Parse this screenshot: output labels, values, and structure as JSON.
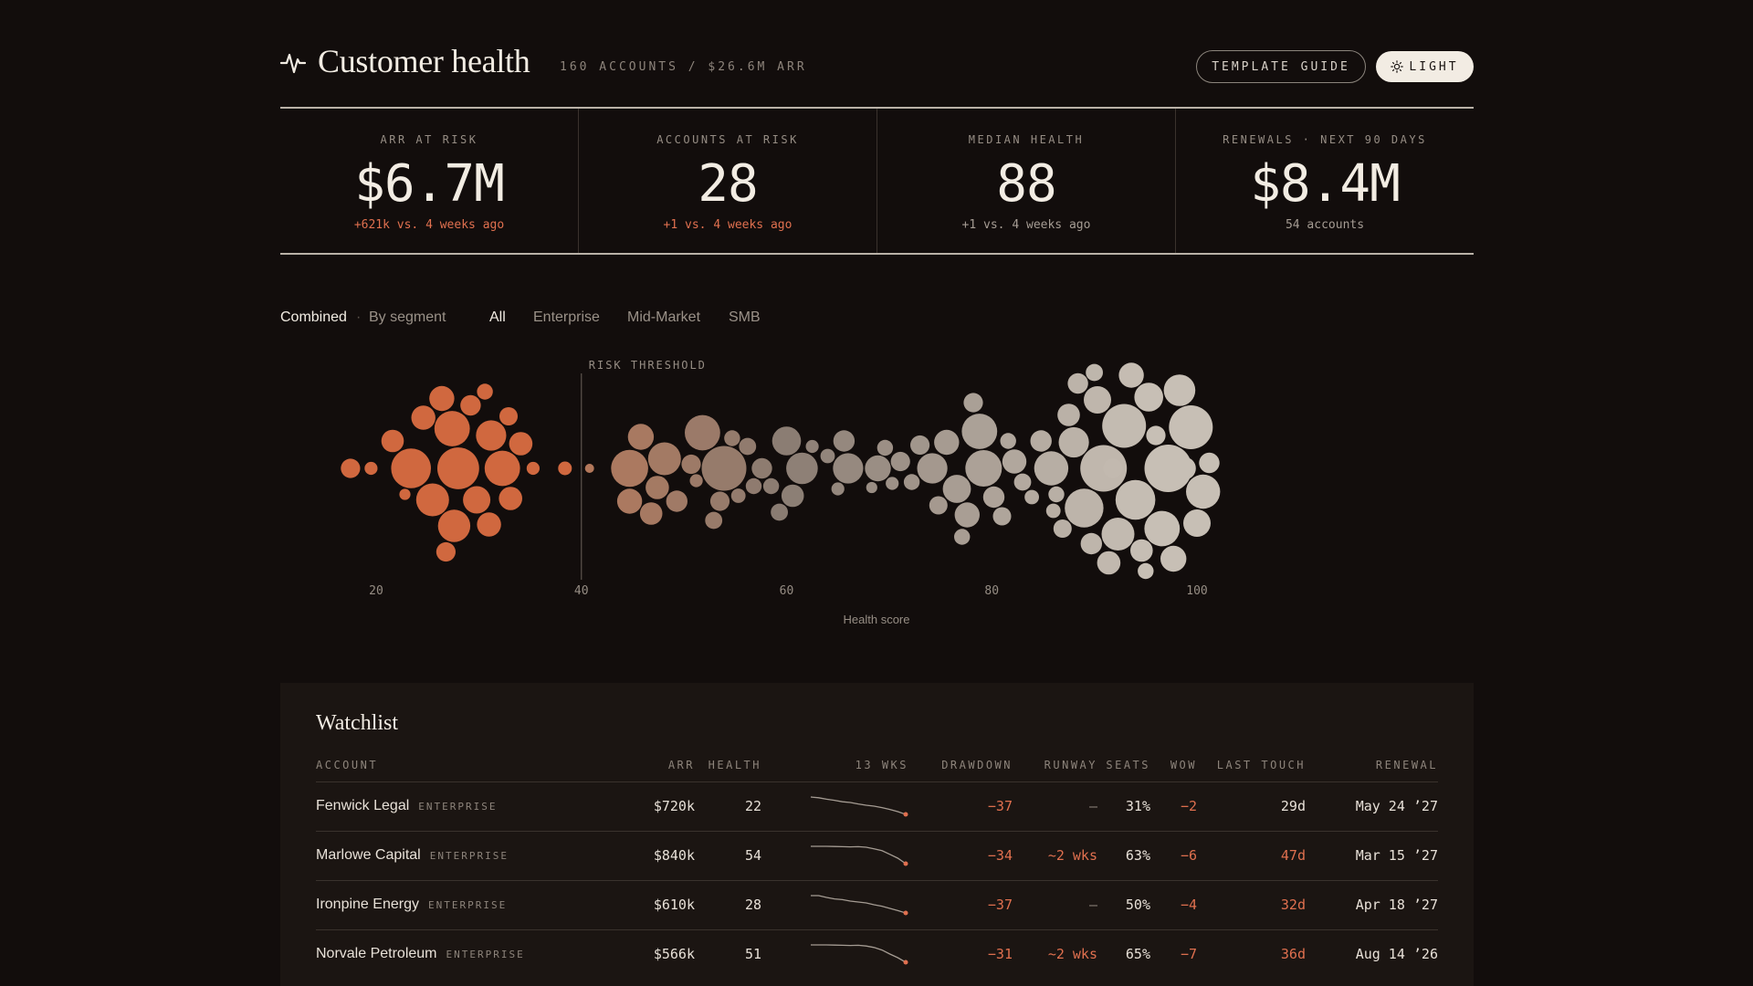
{
  "header": {
    "title": "Customer health",
    "subtitle": "160 ACCOUNTS / $26.6M ARR",
    "template_guide": "TEMPLATE GUIDE",
    "theme_toggle": "LIGHT"
  },
  "kpis": [
    {
      "label": "ARR AT RISK",
      "value": "$6.7M",
      "sub": "+621k vs. 4 weeks ago",
      "sub_status": "bad"
    },
    {
      "label": "ACCOUNTS AT RISK",
      "value": "28",
      "sub": "+1 vs. 4 weeks ago",
      "sub_status": "bad"
    },
    {
      "label": "MEDIAN HEALTH",
      "value": "88",
      "sub": "+1 vs. 4 weeks ago",
      "sub_status": "neutral"
    },
    {
      "label": "RENEWALS · NEXT 90 DAYS",
      "value": "$8.4M",
      "sub": "54 accounts",
      "sub_status": "neutral"
    }
  ],
  "controls": {
    "view_options": [
      "Combined",
      "By segment"
    ],
    "active_view": "Combined",
    "separator": "·",
    "segment_filters": [
      "All",
      "Enterprise",
      "Mid-Market",
      "SMB"
    ],
    "active_segment": "All"
  },
  "chart_data": {
    "type": "scatter",
    "title": "",
    "xlabel": "Health score",
    "ylabel": "",
    "xlim": [
      10,
      102
    ],
    "x_ticks": [
      20,
      40,
      60,
      80,
      100
    ],
    "threshold": {
      "label": "RISK THRESHOLD",
      "x": 40
    },
    "colors": {
      "at_risk": "#d0683f",
      "mid": "#8a7c72",
      "healthy": "#c7bfb5"
    },
    "points": [
      {
        "x": 17.5,
        "arr": 90
      },
      {
        "x": 19.5,
        "arr": 40
      },
      {
        "x": 21.6,
        "arr": 120
      },
      {
        "x": 22.8,
        "arr": 30
      },
      {
        "x": 23.4,
        "arr": 380
      },
      {
        "x": 24.6,
        "arr": 140
      },
      {
        "x": 25.5,
        "arr": 260
      },
      {
        "x": 26.4,
        "arr": 150
      },
      {
        "x": 26.8,
        "arr": 90
      },
      {
        "x": 27.6,
        "arr": 250
      },
      {
        "x": 27.4,
        "arr": 300
      },
      {
        "x": 28.0,
        "arr": 420
      },
      {
        "x": 29.2,
        "arr": 100
      },
      {
        "x": 29.8,
        "arr": 180
      },
      {
        "x": 30.6,
        "arr": 60
      },
      {
        "x": 31.2,
        "arr": 220
      },
      {
        "x": 31.0,
        "arr": 140
      },
      {
        "x": 32.3,
        "arr": 300
      },
      {
        "x": 32.9,
        "arr": 80
      },
      {
        "x": 33.1,
        "arr": 130
      },
      {
        "x": 34.1,
        "arr": 130
      },
      {
        "x": 35.3,
        "arr": 40
      },
      {
        "x": 38.4,
        "arr": 45
      },
      {
        "x": 40.8,
        "arr": 20
      },
      {
        "x": 44.7,
        "arr": 330
      },
      {
        "x": 44.7,
        "arr": 150
      },
      {
        "x": 45.8,
        "arr": 160
      },
      {
        "x": 46.8,
        "arr": 120
      },
      {
        "x": 47.4,
        "arr": 130
      },
      {
        "x": 48.1,
        "arr": 260
      },
      {
        "x": 49.3,
        "arr": 110
      },
      {
        "x": 50.7,
        "arr": 90
      },
      {
        "x": 51.2,
        "arr": 40
      },
      {
        "x": 51.8,
        "arr": 300
      },
      {
        "x": 52.9,
        "arr": 70
      },
      {
        "x": 53.5,
        "arr": 90
      },
      {
        "x": 53.9,
        "arr": 480
      },
      {
        "x": 54.7,
        "arr": 60
      },
      {
        "x": 55.3,
        "arr": 50
      },
      {
        "x": 56.2,
        "arr": 70
      },
      {
        "x": 56.8,
        "arr": 60
      },
      {
        "x": 57.6,
        "arr": 100
      },
      {
        "x": 58.5,
        "arr": 60
      },
      {
        "x": 59.3,
        "arr": 70
      },
      {
        "x": 60.0,
        "arr": 200
      },
      {
        "x": 60.6,
        "arr": 120
      },
      {
        "x": 61.5,
        "arr": 240
      },
      {
        "x": 62.5,
        "arr": 40
      },
      {
        "x": 64.0,
        "arr": 50
      },
      {
        "x": 65.0,
        "arr": 40
      },
      {
        "x": 65.6,
        "arr": 110
      },
      {
        "x": 66.0,
        "arr": 220
      },
      {
        "x": 68.3,
        "arr": 30
      },
      {
        "x": 68.9,
        "arr": 160
      },
      {
        "x": 69.6,
        "arr": 60
      },
      {
        "x": 70.3,
        "arr": 40
      },
      {
        "x": 71.1,
        "arr": 90
      },
      {
        "x": 72.2,
        "arr": 60
      },
      {
        "x": 73.0,
        "arr": 90
      },
      {
        "x": 74.2,
        "arr": 220
      },
      {
        "x": 74.8,
        "arr": 80
      },
      {
        "x": 75.6,
        "arr": 150
      },
      {
        "x": 76.6,
        "arr": 190
      },
      {
        "x": 77.1,
        "arr": 60
      },
      {
        "x": 77.6,
        "arr": 150
      },
      {
        "x": 78.2,
        "arr": 90
      },
      {
        "x": 78.8,
        "arr": 300
      },
      {
        "x": 79.2,
        "arr": 320
      },
      {
        "x": 80.2,
        "arr": 110
      },
      {
        "x": 81.0,
        "arr": 80
      },
      {
        "x": 81.6,
        "arr": 60
      },
      {
        "x": 82.2,
        "arr": 140
      },
      {
        "x": 83.0,
        "arr": 70
      },
      {
        "x": 83.9,
        "arr": 50
      },
      {
        "x": 84.8,
        "arr": 110
      },
      {
        "x": 85.8,
        "arr": 280
      },
      {
        "x": 86.3,
        "arr": 60
      },
      {
        "x": 86.9,
        "arr": 80
      },
      {
        "x": 87.5,
        "arr": 120
      },
      {
        "x": 88.0,
        "arr": 220
      },
      {
        "x": 88.4,
        "arr": 100
      },
      {
        "x": 89.0,
        "arr": 360
      },
      {
        "x": 89.7,
        "arr": 110
      },
      {
        "x": 90.3,
        "arr": 180
      },
      {
        "x": 90.9,
        "arr": 520
      },
      {
        "x": 91.4,
        "arr": 130
      },
      {
        "x": 91.8,
        "arr": 90
      },
      {
        "x": 92.3,
        "arr": 260
      },
      {
        "x": 92.9,
        "arr": 460
      },
      {
        "x": 93.6,
        "arr": 150
      },
      {
        "x": 94.0,
        "arr": 380
      },
      {
        "x": 94.6,
        "arr": 120
      },
      {
        "x": 95.3,
        "arr": 200
      },
      {
        "x": 96.0,
        "arr": 90
      },
      {
        "x": 96.6,
        "arr": 300
      },
      {
        "x": 97.2,
        "arr": 540
      },
      {
        "x": 97.7,
        "arr": 160
      },
      {
        "x": 98.3,
        "arr": 240
      },
      {
        "x": 98.8,
        "arr": 120
      },
      {
        "x": 99.4,
        "arr": 460
      },
      {
        "x": 100.0,
        "arr": 180
      },
      {
        "x": 100.6,
        "arr": 280
      },
      {
        "x": 101.2,
        "arr": 100
      },
      {
        "x": 95.0,
        "arr": 60
      },
      {
        "x": 86.0,
        "arr": 50
      },
      {
        "x": 90.0,
        "arr": 70
      }
    ]
  },
  "watchlist": {
    "title": "Watchlist",
    "columns": [
      "ACCOUNT",
      "ARR",
      "HEALTH",
      "13 WKS",
      "DRAWDOWN",
      "RUNWAY",
      "SEATS",
      "WOW",
      "LAST TOUCH",
      "RENEWAL"
    ],
    "rows": [
      {
        "account": "Fenwick Legal",
        "segment": "ENTERPRISE",
        "arr": "$720k",
        "health": "22",
        "trend": [
          1.0,
          0.96,
          0.88,
          0.82,
          0.74,
          0.7,
          0.62,
          0.55,
          0.5,
          0.42,
          0.32,
          0.2,
          0.05
        ],
        "drawdown": "−37",
        "runway": "—",
        "seats": "31%",
        "wow": "−2",
        "last_touch": "29d",
        "last_touch_status": "neutral",
        "renewal": "May 24 ’27"
      },
      {
        "account": "Marlowe Capital",
        "segment": "ENTERPRISE",
        "arr": "$840k",
        "health": "54",
        "trend": [
          1.0,
          1.0,
          1.0,
          0.99,
          0.98,
          0.97,
          0.98,
          0.95,
          0.86,
          0.76,
          0.56,
          0.35,
          0.05
        ],
        "drawdown": "−34",
        "runway": "~2 wks",
        "seats": "63%",
        "wow": "−6",
        "last_touch": "47d",
        "last_touch_status": "bad",
        "renewal": "Mar 15 ’27"
      },
      {
        "account": "Ironpine Energy",
        "segment": "ENTERPRISE",
        "arr": "$610k",
        "health": "28",
        "trend": [
          1.0,
          1.0,
          0.9,
          0.82,
          0.78,
          0.7,
          0.65,
          0.6,
          0.5,
          0.42,
          0.3,
          0.18,
          0.05
        ],
        "drawdown": "−37",
        "runway": "—",
        "seats": "50%",
        "wow": "−4",
        "last_touch": "32d",
        "last_touch_status": "bad",
        "renewal": "Apr 18 ’27"
      },
      {
        "account": "Norvale Petroleum",
        "segment": "ENTERPRISE",
        "arr": "$566k",
        "health": "51",
        "trend": [
          1.0,
          1.0,
          1.0,
          0.99,
          0.98,
          0.97,
          0.98,
          0.94,
          0.86,
          0.72,
          0.5,
          0.3,
          0.05
        ],
        "drawdown": "−31",
        "runway": "~2 wks",
        "seats": "65%",
        "wow": "−7",
        "last_touch": "36d",
        "last_touch_status": "bad",
        "renewal": "Aug 14 ’26"
      }
    ]
  }
}
